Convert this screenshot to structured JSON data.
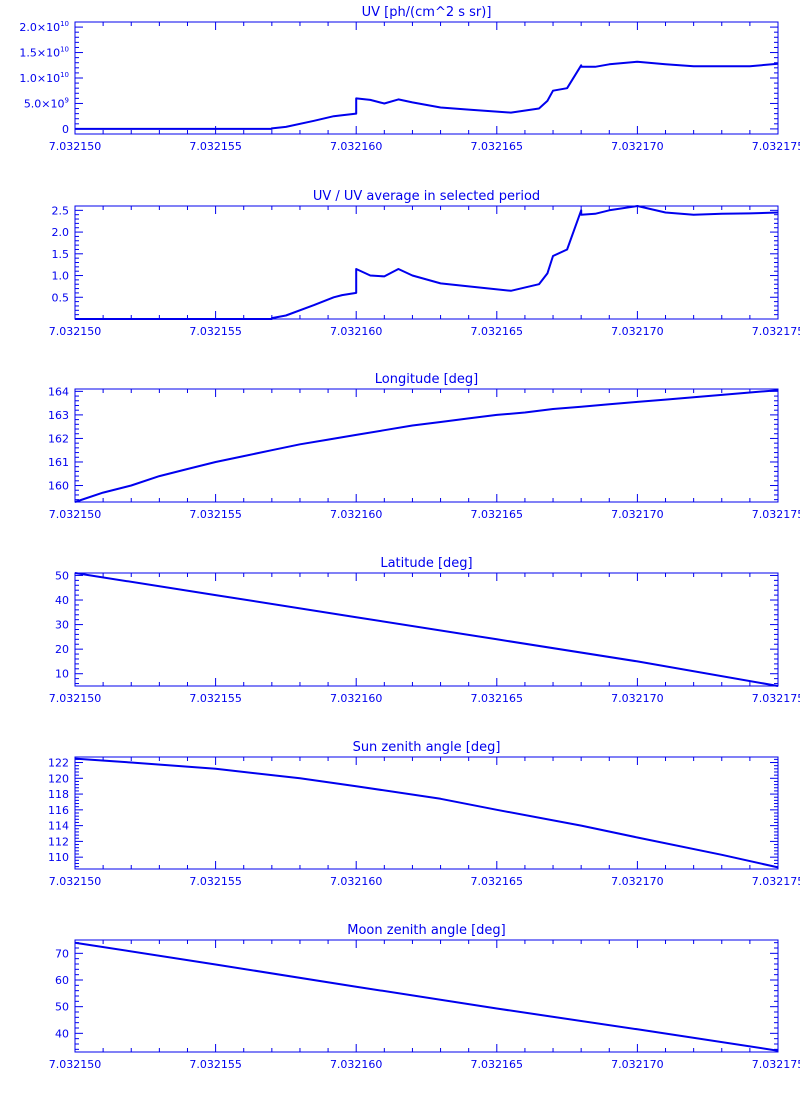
{
  "colors": {
    "foreground": "#0000ee",
    "background": "#ffffff"
  },
  "chart_data": [
    {
      "type": "line",
      "title": "UV [ph/(cm^2 s sr)]",
      "xlabel": "",
      "ylabel": "",
      "xlim": [
        7.03215,
        7.032175
      ],
      "ylim": [
        -1000000000.0,
        21000000000.0
      ],
      "x_ticks": [
        "7.032150",
        "7.032155",
        "7.032160",
        "7.032165",
        "7.032170",
        "7.032175"
      ],
      "y_ticks": [
        {
          "value": 0,
          "label": "0"
        },
        {
          "value": 5000000000.0,
          "mantissa": "5.0×10",
          "exp": "9"
        },
        {
          "value": 10000000000.0,
          "mantissa": "1.0×10",
          "exp": "10"
        },
        {
          "value": 15000000000.0,
          "mantissa": "1.5×10",
          "exp": "10"
        },
        {
          "value": 20000000000.0,
          "mantissa": "2.0×10",
          "exp": "10"
        }
      ],
      "grid": false,
      "legend": "none",
      "series": [
        {
          "x": [
            7.03215,
            7.032157,
            7.032157,
            7.0321575,
            7.0321585,
            7.0321592,
            7.0321595,
            7.03216,
            7.03216,
            7.0321605,
            7.032161,
            7.0321615,
            7.032162,
            7.032163,
            7.032164,
            7.0321655,
            7.0321665,
            7.0321668,
            7.032167,
            7.0321675,
            7.032168,
            7.032168,
            7.0321685,
            7.032169,
            7.03217,
            7.032171,
            7.032172,
            7.032173,
            7.032174,
            7.032175
          ],
          "y": [
            0,
            0,
            100000000.0,
            400000000.0,
            1600000000.0,
            2500000000.0,
            2700000000.0,
            3000000000.0,
            6000000000.0,
            5700000000.0,
            5000000000.0,
            5800000000.0,
            5200000000.0,
            4200000000.0,
            3800000000.0,
            3200000000.0,
            4000000000.0,
            5500000000.0,
            7500000000.0,
            8000000000.0,
            12500000000.0,
            12200000000.0,
            12200000000.0,
            12700000000.0,
            13200000000.0,
            12700000000.0,
            12300000000.0,
            12300000000.0,
            12300000000.0,
            12800000000.0
          ]
        }
      ]
    },
    {
      "type": "line",
      "title": "UV / UV average in selected period",
      "xlabel": "",
      "ylabel": "",
      "xlim": [
        7.03215,
        7.032175
      ],
      "ylim": [
        0,
        2.6
      ],
      "x_ticks": [
        "7.032150",
        "7.032155",
        "7.032160",
        "7.032165",
        "7.032170",
        "7.032175"
      ],
      "y_ticks": [
        {
          "value": 0.5,
          "label": "0.5"
        },
        {
          "value": 1.0,
          "label": "1.0"
        },
        {
          "value": 1.5,
          "label": "1.5"
        },
        {
          "value": 2.0,
          "label": "2.0"
        },
        {
          "value": 2.5,
          "label": "2.5"
        }
      ],
      "grid": false,
      "legend": "none",
      "series": [
        {
          "x": [
            7.03215,
            7.032157,
            7.032157,
            7.0321575,
            7.0321585,
            7.0321592,
            7.0321595,
            7.03216,
            7.03216,
            7.0321605,
            7.032161,
            7.0321615,
            7.032162,
            7.032163,
            7.032164,
            7.0321655,
            7.0321665,
            7.0321668,
            7.032167,
            7.0321675,
            7.032168,
            7.032168,
            7.0321685,
            7.032169,
            7.03217,
            7.032171,
            7.032172,
            7.032173,
            7.032174,
            7.032175
          ],
          "y": [
            0,
            0,
            0.02,
            0.08,
            0.32,
            0.5,
            0.55,
            0.6,
            1.15,
            1.0,
            0.98,
            1.15,
            1.0,
            0.82,
            0.75,
            0.65,
            0.8,
            1.05,
            1.45,
            1.6,
            2.5,
            2.4,
            2.42,
            2.5,
            2.6,
            2.45,
            2.4,
            2.42,
            2.43,
            2.45
          ]
        }
      ]
    },
    {
      "type": "line",
      "title": "Longitude [deg]",
      "xlabel": "",
      "ylabel": "",
      "xlim": [
        7.03215,
        7.032175
      ],
      "ylim": [
        159.3,
        164.1
      ],
      "x_ticks": [
        "7.032150",
        "7.032155",
        "7.032160",
        "7.032165",
        "7.032170",
        "7.032175"
      ],
      "y_ticks": [
        {
          "value": 160,
          "label": "160"
        },
        {
          "value": 161,
          "label": "161"
        },
        {
          "value": 162,
          "label": "162"
        },
        {
          "value": 163,
          "label": "163"
        },
        {
          "value": 164,
          "label": "164"
        }
      ],
      "grid": false,
      "legend": "none",
      "series": [
        {
          "x": [
            7.03215,
            7.032151,
            7.032152,
            7.032153,
            7.032154,
            7.032155,
            7.032156,
            7.032157,
            7.032158,
            7.032159,
            7.03216,
            7.032161,
            7.032162,
            7.032163,
            7.032164,
            7.032165,
            7.032166,
            7.032167,
            7.032168,
            7.032169,
            7.03217,
            7.032171,
            7.032172,
            7.032173,
            7.032174,
            7.032175
          ],
          "y": [
            159.3,
            159.7,
            160.0,
            160.4,
            160.7,
            161.0,
            161.25,
            161.5,
            161.75,
            161.95,
            162.15,
            162.35,
            162.55,
            162.7,
            162.85,
            163.0,
            163.1,
            163.25,
            163.35,
            163.45,
            163.55,
            163.65,
            163.75,
            163.85,
            163.95,
            164.05
          ]
        }
      ]
    },
    {
      "type": "line",
      "title": "Latitude [deg]",
      "xlabel": "",
      "ylabel": "",
      "xlim": [
        7.03215,
        7.032175
      ],
      "ylim": [
        5,
        51
      ],
      "x_ticks": [
        "7.032150",
        "7.032155",
        "7.032160",
        "7.032165",
        "7.032170",
        "7.032175"
      ],
      "y_ticks": [
        {
          "value": 10,
          "label": "10"
        },
        {
          "value": 20,
          "label": "20"
        },
        {
          "value": 30,
          "label": "30"
        },
        {
          "value": 40,
          "label": "40"
        },
        {
          "value": 50,
          "label": "50"
        }
      ],
      "grid": false,
      "legend": "none",
      "series": [
        {
          "x": [
            7.03215,
            7.032155,
            7.03216,
            7.032165,
            7.03217,
            7.032175
          ],
          "y": [
            51,
            42,
            33,
            24,
            15,
            5
          ]
        }
      ]
    },
    {
      "type": "line",
      "title": "Sun zenith angle [deg]",
      "xlabel": "",
      "ylabel": "",
      "xlim": [
        7.03215,
        7.032175
      ],
      "ylim": [
        108.5,
        122.7
      ],
      "x_ticks": [
        "7.032150",
        "7.032155",
        "7.032160",
        "7.032165",
        "7.032170",
        "7.032175"
      ],
      "y_ticks": [
        {
          "value": 110,
          "label": "110"
        },
        {
          "value": 112,
          "label": "112"
        },
        {
          "value": 114,
          "label": "114"
        },
        {
          "value": 116,
          "label": "116"
        },
        {
          "value": 118,
          "label": "118"
        },
        {
          "value": 120,
          "label": "120"
        },
        {
          "value": 122,
          "label": "122"
        }
      ],
      "grid": false,
      "legend": "none",
      "series": [
        {
          "x": [
            7.03215,
            7.032152,
            7.032155,
            7.032158,
            7.03216,
            7.032163,
            7.032165,
            7.032168,
            7.03217,
            7.032173,
            7.032175
          ],
          "y": [
            122.5,
            122.0,
            121.2,
            120.0,
            119.0,
            117.4,
            116.0,
            114.0,
            112.5,
            110.3,
            108.7
          ]
        }
      ]
    },
    {
      "type": "line",
      "title": "Moon zenith angle [deg]",
      "xlabel": "",
      "ylabel": "",
      "xlim": [
        7.03215,
        7.032175
      ],
      "ylim": [
        33,
        75
      ],
      "x_ticks": [
        "7.032150",
        "7.032155",
        "7.032160",
        "7.032165",
        "7.032170",
        "7.032175"
      ],
      "y_ticks": [
        {
          "value": 40,
          "label": "40"
        },
        {
          "value": 50,
          "label": "50"
        },
        {
          "value": 60,
          "label": "60"
        },
        {
          "value": 70,
          "label": "70"
        }
      ],
      "grid": false,
      "legend": "none",
      "series": [
        {
          "x": [
            7.03215,
            7.032155,
            7.03216,
            7.032165,
            7.03217,
            7.032175
          ],
          "y": [
            74,
            65.8,
            57.5,
            49.3,
            41.5,
            33.5
          ]
        }
      ]
    }
  ]
}
